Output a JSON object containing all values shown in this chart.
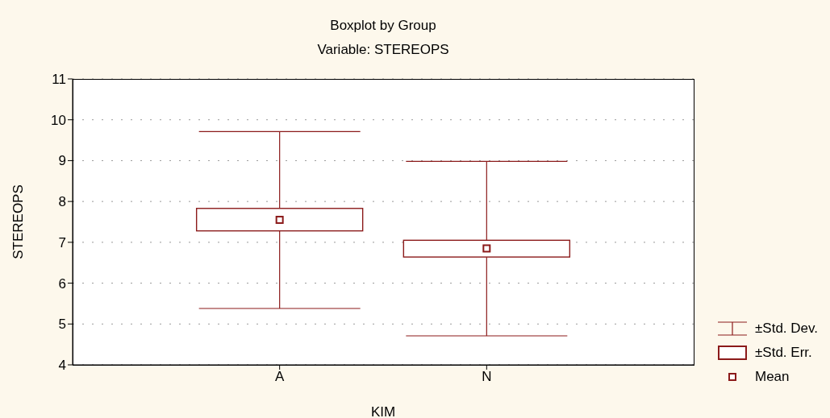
{
  "chart_data": {
    "type": "box",
    "title": "Boxplot by Group",
    "subtitle": "Variable: STEREOPS",
    "xlabel": "KIM",
    "ylabel": "STEREOPS",
    "categories": [
      "A",
      "N"
    ],
    "series": [
      {
        "color": "#8b1a1a",
        "boxes": [
          {
            "low": 5.38,
            "q1": 7.28,
            "q3": 7.83,
            "high": 9.71,
            "mean": 7.55
          },
          {
            "low": 4.71,
            "q1": 6.64,
            "q3": 7.05,
            "high": 8.98,
            "mean": 6.85
          }
        ]
      }
    ],
    "ylim": [
      4,
      11
    ],
    "yticks": [
      4,
      5,
      6,
      7,
      8,
      9,
      10,
      11
    ],
    "grid": "y",
    "annotations": [
      "±Std. Dev.",
      "±Std. Err.",
      "Mean"
    ]
  }
}
